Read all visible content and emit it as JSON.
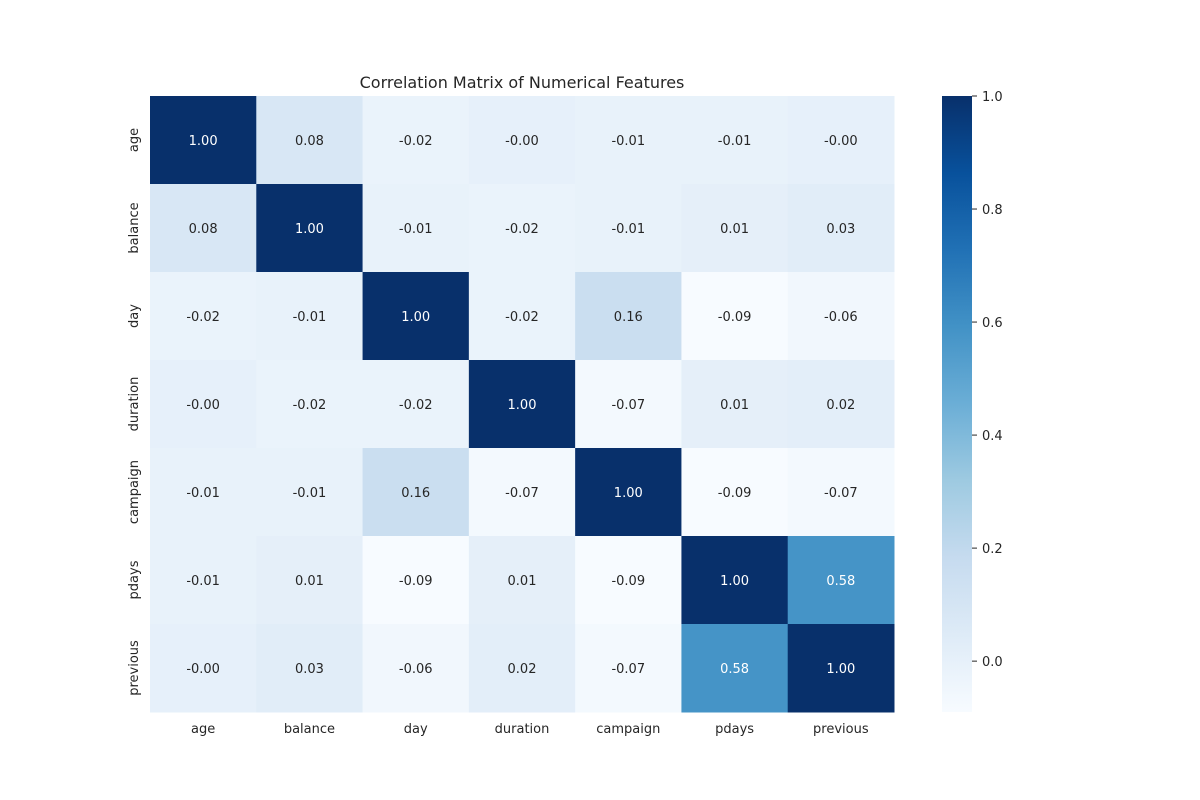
{
  "chart_data": {
    "type": "heatmap",
    "title": "Correlation Matrix of Numerical Features",
    "xlabel": "",
    "ylabel": "",
    "x_categories": [
      "age",
      "balance",
      "day",
      "duration",
      "campaign",
      "pdays",
      "previous"
    ],
    "y_categories": [
      "age",
      "balance",
      "day",
      "duration",
      "campaign",
      "pdays",
      "previous"
    ],
    "values": [
      [
        1.0,
        0.08,
        -0.02,
        -0.0,
        -0.01,
        -0.01,
        -0.0
      ],
      [
        0.08,
        1.0,
        -0.01,
        -0.02,
        -0.01,
        0.01,
        0.03
      ],
      [
        -0.02,
        -0.01,
        1.0,
        -0.02,
        0.16,
        -0.09,
        -0.06
      ],
      [
        -0.0,
        -0.02,
        -0.02,
        1.0,
        -0.07,
        0.01,
        0.02
      ],
      [
        -0.01,
        -0.01,
        0.16,
        -0.07,
        1.0,
        -0.09,
        -0.07
      ],
      [
        -0.01,
        0.01,
        -0.09,
        0.01,
        -0.09,
        1.0,
        0.58
      ],
      [
        -0.0,
        0.03,
        -0.06,
        0.02,
        -0.07,
        0.58,
        1.0
      ]
    ],
    "value_format": "0.00",
    "colormap": "Blues",
    "color_range": [
      -0.09,
      1.0
    ],
    "colorbar": {
      "ticks": [
        0.0,
        0.2,
        0.4,
        0.6,
        0.8,
        1.0
      ],
      "tick_labels": [
        "0.0",
        "0.2",
        "0.4",
        "0.6",
        "0.8",
        "1.0"
      ],
      "placement": "right"
    },
    "colors": {
      "low": "#f7fbff",
      "high": "#08306b",
      "text_dark": "#262626",
      "text_light": "#ffffff"
    }
  }
}
